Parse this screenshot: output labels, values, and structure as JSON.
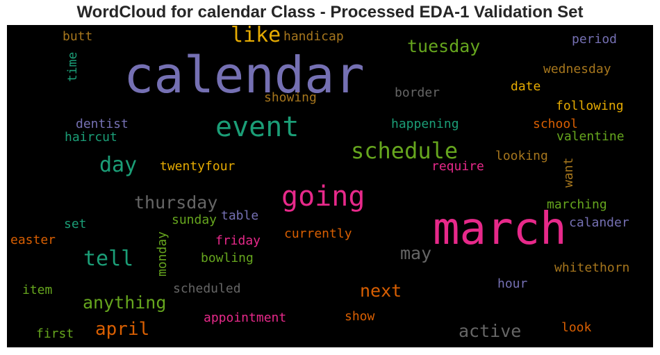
{
  "chart_data": {
    "type": "wordcloud",
    "title": "WordCloud for calendar Class - Processed EDA-1 Validation Set",
    "background": "#000000",
    "words": [
      {
        "text": "calendar",
        "color": "#7570b3"
      },
      {
        "text": "march",
        "color": "#e7298a"
      },
      {
        "text": "event",
        "color": "#1b9e77"
      },
      {
        "text": "going",
        "color": "#e7298a"
      },
      {
        "text": "schedule",
        "color": "#66a61e"
      },
      {
        "text": "like",
        "color": "#e6ab02"
      },
      {
        "text": "tuesday",
        "color": "#66a61e"
      },
      {
        "text": "day",
        "color": "#1b9e77"
      },
      {
        "text": "thursday",
        "color": "#666666"
      },
      {
        "text": "tell",
        "color": "#1b9e77"
      },
      {
        "text": "anything",
        "color": "#66a61e"
      },
      {
        "text": "april",
        "color": "#d95f02"
      },
      {
        "text": "next",
        "color": "#d95f02"
      },
      {
        "text": "may",
        "color": "#666666"
      },
      {
        "text": "active",
        "color": "#666666"
      },
      {
        "text": "butt",
        "color": "#a6761d"
      },
      {
        "text": "handicap",
        "color": "#a6761d"
      },
      {
        "text": "period",
        "color": "#7570b3"
      },
      {
        "text": "time",
        "color": "#1b9e77"
      },
      {
        "text": "wednesday",
        "color": "#a6761d"
      },
      {
        "text": "date",
        "color": "#e6ab02"
      },
      {
        "text": "border",
        "color": "#666666"
      },
      {
        "text": "showing",
        "color": "#a6761d"
      },
      {
        "text": "following",
        "color": "#e6ab02"
      },
      {
        "text": "dentist",
        "color": "#7570b3"
      },
      {
        "text": "haircut",
        "color": "#1b9e77"
      },
      {
        "text": "happening",
        "color": "#1b9e77"
      },
      {
        "text": "school",
        "color": "#d95f02"
      },
      {
        "text": "valentine",
        "color": "#66a61e"
      },
      {
        "text": "looking",
        "color": "#a6761d"
      },
      {
        "text": "twentyfour",
        "color": "#e6ab02"
      },
      {
        "text": "require",
        "color": "#e7298a"
      },
      {
        "text": "want",
        "color": "#a6761d"
      },
      {
        "text": "marching",
        "color": "#66a61e"
      },
      {
        "text": "table",
        "color": "#7570b3"
      },
      {
        "text": "set",
        "color": "#1b9e77"
      },
      {
        "text": "sunday",
        "color": "#66a61e"
      },
      {
        "text": "calander",
        "color": "#7570b3"
      },
      {
        "text": "easter",
        "color": "#d95f02"
      },
      {
        "text": "friday",
        "color": "#e7298a"
      },
      {
        "text": "currently",
        "color": "#d95f02"
      },
      {
        "text": "monday",
        "color": "#66a61e"
      },
      {
        "text": "bowling",
        "color": "#66a61e"
      },
      {
        "text": "whitethorn",
        "color": "#a6761d"
      },
      {
        "text": "item",
        "color": "#66a61e"
      },
      {
        "text": "scheduled",
        "color": "#666666"
      },
      {
        "text": "hour",
        "color": "#7570b3"
      },
      {
        "text": "appointment",
        "color": "#e7298a"
      },
      {
        "text": "show",
        "color": "#d95f02"
      },
      {
        "text": "look",
        "color": "#d95f02"
      },
      {
        "text": "first",
        "color": "#66a61e"
      }
    ]
  }
}
